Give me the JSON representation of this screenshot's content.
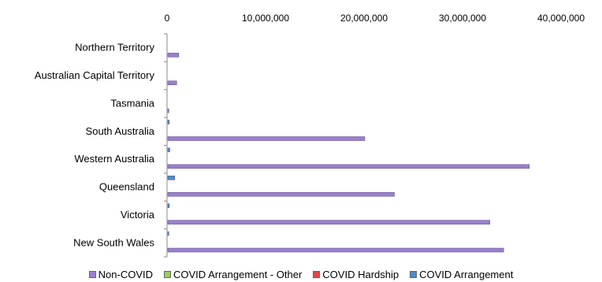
{
  "chart_data": {
    "type": "bar",
    "orientation": "horizontal",
    "categories": [
      "Northern Territory",
      "Australian Capital Territory",
      "Tasmania",
      "South Australia",
      "Western Australia",
      "Queensland",
      "Victoria",
      "New South Wales"
    ],
    "series": [
      {
        "name": "Non-COVID",
        "color": "#9b7fd0",
        "values": [
          1100000,
          900000,
          100000,
          20000000,
          36700000,
          23000000,
          32700000,
          34100000
        ]
      },
      {
        "name": "COVID Arrangement - Other",
        "color": "#9acd5a",
        "values": [
          0,
          0,
          0,
          0,
          0,
          0,
          0,
          0
        ]
      },
      {
        "name": "COVID Hardship",
        "color": "#d94a4a",
        "values": [
          0,
          0,
          0,
          0,
          0,
          0,
          0,
          0
        ]
      },
      {
        "name": "COVID Arrangement",
        "color": "#4b8fc9",
        "values": [
          0,
          0,
          0,
          150000,
          200000,
          700000,
          150000,
          100000
        ]
      }
    ],
    "xlim": [
      0,
      40000000
    ],
    "x_ticks": [
      0,
      10000000,
      20000000,
      30000000,
      40000000
    ],
    "x_tick_labels": [
      "0",
      "10,000,000",
      "20,000,000",
      "30,000,000",
      "40,000,000"
    ],
    "axis_position": "top",
    "legend": "bottom",
    "grid": false
  }
}
